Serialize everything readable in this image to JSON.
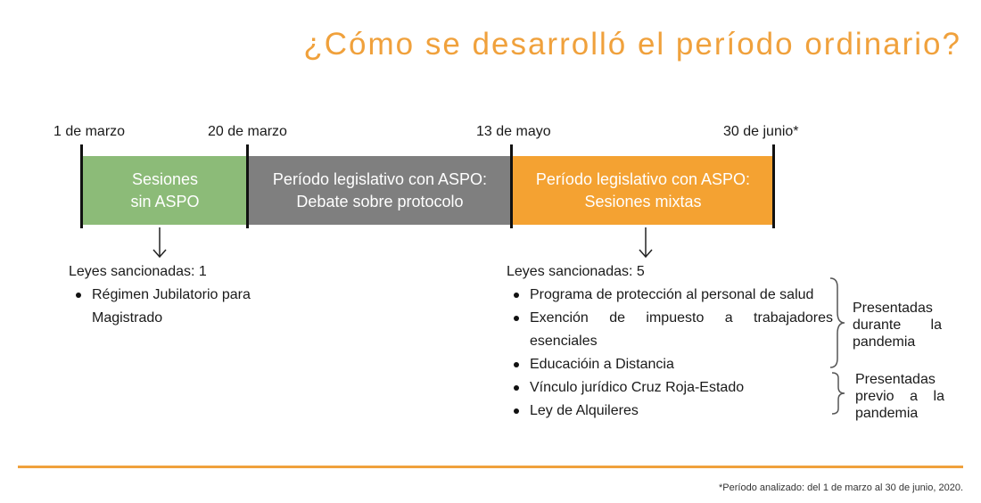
{
  "title": "¿Cómo se desarrolló el período ordinario?",
  "dates": [
    "1 de marzo",
    "20 de marzo",
    "13 de mayo",
    "30 de junio*"
  ],
  "segments": [
    {
      "line1": "Sesiones",
      "line2": "sin ASPO",
      "color": "#8cbb78"
    },
    {
      "line1": "Período legislativo con ASPO:",
      "line2": "Debate sobre protocolo",
      "color": "#7f7f7f"
    },
    {
      "line1": "Período legislativo con ASPO:",
      "line2": "Sesiones mixtas",
      "color": "#f4a232"
    }
  ],
  "left_block": {
    "heading": "Leyes sancionadas: 1",
    "items": [
      "Régimen Jubilatorio para Magistrado"
    ]
  },
  "right_block": {
    "heading": "Leyes sancionadas: 5",
    "items": [
      "Programa de protección al personal de salud",
      "Exención de impuesto a trabajadores esenciales",
      "Educacióin a Distancia",
      "Vínculo jurídico Cruz Roja-Estado",
      "Ley de Alquileres"
    ]
  },
  "groups": [
    {
      "label": "Presentadas durante la pandemia"
    },
    {
      "label": "Presentadas previo a la pandemia"
    }
  ],
  "footnote": "*Período analizado: del 1 de marzo al 30 de junio, 2020.",
  "colors": {
    "accent": "#f0a13c",
    "green": "#8cbb78",
    "gray": "#7f7f7f",
    "orange": "#f4a232"
  }
}
